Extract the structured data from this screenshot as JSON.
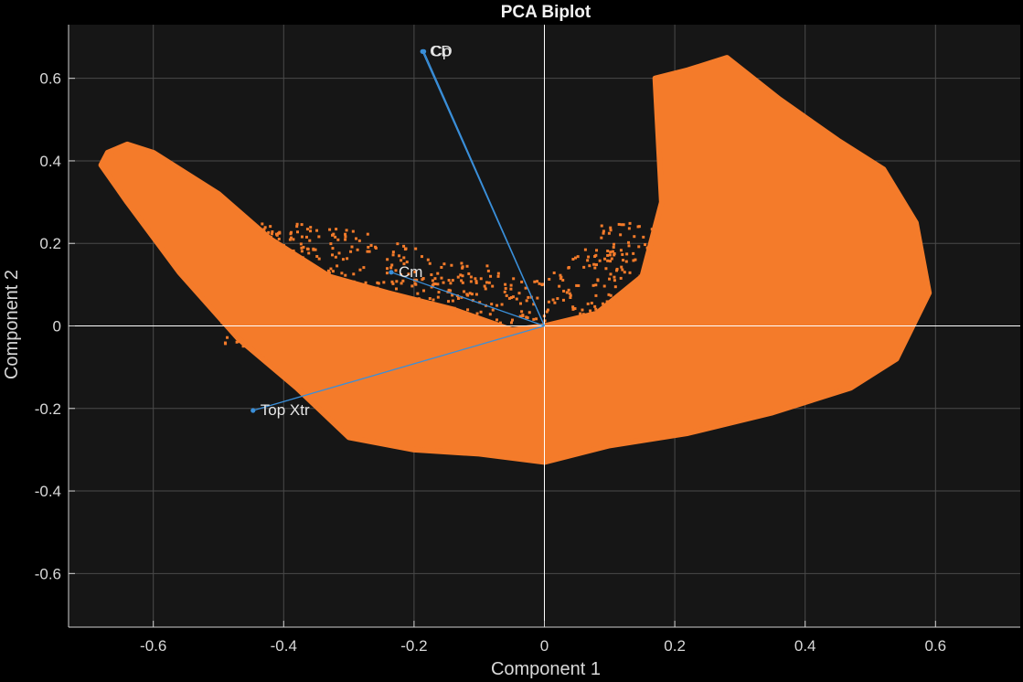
{
  "chart_data": {
    "type": "scatter",
    "title": "PCA Biplot",
    "xlabel": "Component 1",
    "ylabel": "Component 2",
    "xlim": [
      -0.73,
      0.73
    ],
    "ylim": [
      -0.73,
      0.73
    ],
    "xticks": [
      -0.6,
      -0.4,
      -0.2,
      0,
      0.2,
      0.4,
      0.6
    ],
    "yticks": [
      -0.6,
      -0.4,
      -0.2,
      0,
      0.2,
      0.4,
      0.6
    ],
    "xtick_labels": [
      "-0.6",
      "-0.4",
      "-0.2",
      "0",
      "0.2",
      "0.4",
      "0.6"
    ],
    "ytick_labels": [
      "-0.6",
      "-0.4",
      "-0.2",
      "0",
      "0.2",
      "0.4",
      "0.6"
    ],
    "grid": true,
    "vectors": [
      {
        "label": "CD",
        "x": -0.187,
        "y": 0.665
      },
      {
        "label": "Cp",
        "x": -0.185,
        "y": 0.665
      },
      {
        "label": "Cm",
        "x": -0.235,
        "y": 0.13
      },
      {
        "label": "Top Xtr",
        "x": -0.447,
        "y": -0.205
      }
    ],
    "cloud_outline": [
      [
        -0.67,
        0.42
      ],
      [
        -0.64,
        0.44
      ],
      [
        -0.6,
        0.42
      ],
      [
        -0.5,
        0.32
      ],
      [
        -0.42,
        0.21
      ],
      [
        -0.33,
        0.12
      ],
      [
        -0.24,
        0.08
      ],
      [
        -0.14,
        0.04
      ],
      [
        -0.05,
        -0.01
      ],
      [
        0.0,
        0.0
      ],
      [
        0.08,
        0.03
      ],
      [
        0.15,
        0.12
      ],
      [
        0.18,
        0.3
      ],
      [
        0.17,
        0.6
      ],
      [
        0.22,
        0.62
      ],
      [
        0.28,
        0.65
      ],
      [
        0.36,
        0.55
      ],
      [
        0.45,
        0.45
      ],
      [
        0.52,
        0.38
      ],
      [
        0.57,
        0.25
      ],
      [
        0.59,
        0.08
      ],
      [
        0.54,
        -0.08
      ],
      [
        0.47,
        -0.15
      ],
      [
        0.35,
        -0.21
      ],
      [
        0.22,
        -0.26
      ],
      [
        0.1,
        -0.29
      ],
      [
        0.0,
        -0.33
      ],
      [
        -0.1,
        -0.31
      ],
      [
        -0.2,
        -0.3
      ],
      [
        -0.3,
        -0.27
      ],
      [
        -0.38,
        -0.15
      ],
      [
        -0.47,
        -0.03
      ],
      [
        -0.56,
        0.13
      ],
      [
        -0.64,
        0.3
      ],
      [
        -0.68,
        0.39
      ]
    ],
    "colors": {
      "points": "#f47b2a",
      "vectors": "#3a8fd9",
      "plot_background": "#161616",
      "grid": "#4a4a4a",
      "axes": "#ffffff"
    }
  }
}
